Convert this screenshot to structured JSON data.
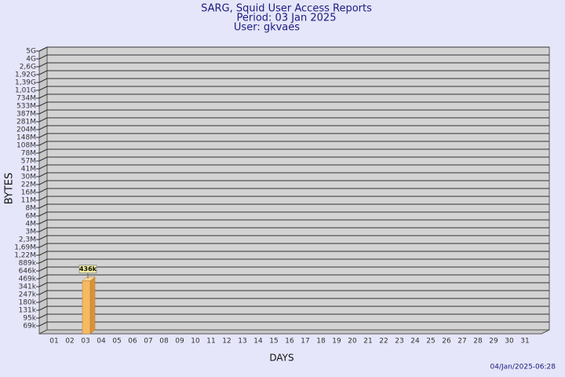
{
  "chart_data": {
    "type": "bar",
    "title": "SARG, Squid User Access Reports",
    "subtitle": "Period: 03 Jan 2025",
    "user": "User: gkvaes",
    "y_label": "BYTES",
    "x_label": "DAYS",
    "footer": "04/Jan/2025-06:28",
    "categories": [
      "01",
      "02",
      "03",
      "04",
      "05",
      "06",
      "07",
      "08",
      "09",
      "10",
      "11",
      "12",
      "13",
      "14",
      "15",
      "16",
      "17",
      "18",
      "19",
      "20",
      "21",
      "22",
      "23",
      "24",
      "25",
      "26",
      "27",
      "28",
      "29",
      "30",
      "31"
    ],
    "values": [
      null,
      null,
      436000,
      null,
      null,
      null,
      null,
      null,
      null,
      null,
      null,
      null,
      null,
      null,
      null,
      null,
      null,
      null,
      null,
      null,
      null,
      null,
      null,
      null,
      null,
      null,
      null,
      null,
      null,
      null,
      null
    ],
    "value_labels": [
      null,
      null,
      "436k",
      null,
      null,
      null,
      null,
      null,
      null,
      null,
      null,
      null,
      null,
      null,
      null,
      null,
      null,
      null,
      null,
      null,
      null,
      null,
      null,
      null,
      null,
      null,
      null,
      null,
      null,
      null,
      null
    ],
    "color": "#f5b961",
    "ylim": [
      0,
      5000000000
    ],
    "yticks": [
      {
        "value": 69000,
        "label": "69k"
      },
      {
        "value": 95000,
        "label": "95k"
      },
      {
        "value": 131000,
        "label": "131k"
      },
      {
        "value": 180000,
        "label": "180k"
      },
      {
        "value": 247000,
        "label": "247k"
      },
      {
        "value": 341000,
        "label": "341k"
      },
      {
        "value": 469000,
        "label": "469k"
      },
      {
        "value": 646000,
        "label": "646k"
      },
      {
        "value": 889000,
        "label": "889k"
      },
      {
        "value": 1220000,
        "label": "1,22M"
      },
      {
        "value": 1690000,
        "label": "1,69M"
      },
      {
        "value": 2300000,
        "label": "2,3M"
      },
      {
        "value": 3000000,
        "label": "3M"
      },
      {
        "value": 4000000,
        "label": "4M"
      },
      {
        "value": 6000000,
        "label": "6M"
      },
      {
        "value": 8000000,
        "label": "8M"
      },
      {
        "value": 11000000,
        "label": "11M"
      },
      {
        "value": 16000000,
        "label": "16M"
      },
      {
        "value": 22000000,
        "label": "22M"
      },
      {
        "value": 30000000,
        "label": "30M"
      },
      {
        "value": 41000000,
        "label": "41M"
      },
      {
        "value": 57000000,
        "label": "57M"
      },
      {
        "value": 78000000,
        "label": "78M"
      },
      {
        "value": 108000000,
        "label": "108M"
      },
      {
        "value": 148000000,
        "label": "148M"
      },
      {
        "value": 204000000,
        "label": "204M"
      },
      {
        "value": 281000000,
        "label": "281M"
      },
      {
        "value": 387000000,
        "label": "387M"
      },
      {
        "value": 533000000,
        "label": "533M"
      },
      {
        "value": 734000000,
        "label": "734M"
      },
      {
        "value": 1010000000,
        "label": "1,01G"
      },
      {
        "value": 1390000000,
        "label": "1,39G"
      },
      {
        "value": 1920000000,
        "label": "1,92G"
      },
      {
        "value": 2600000000,
        "label": "2,6G"
      },
      {
        "value": 4000000000,
        "label": "4G"
      },
      {
        "value": 5000000000,
        "label": "5G"
      }
    ],
    "grid": true
  }
}
